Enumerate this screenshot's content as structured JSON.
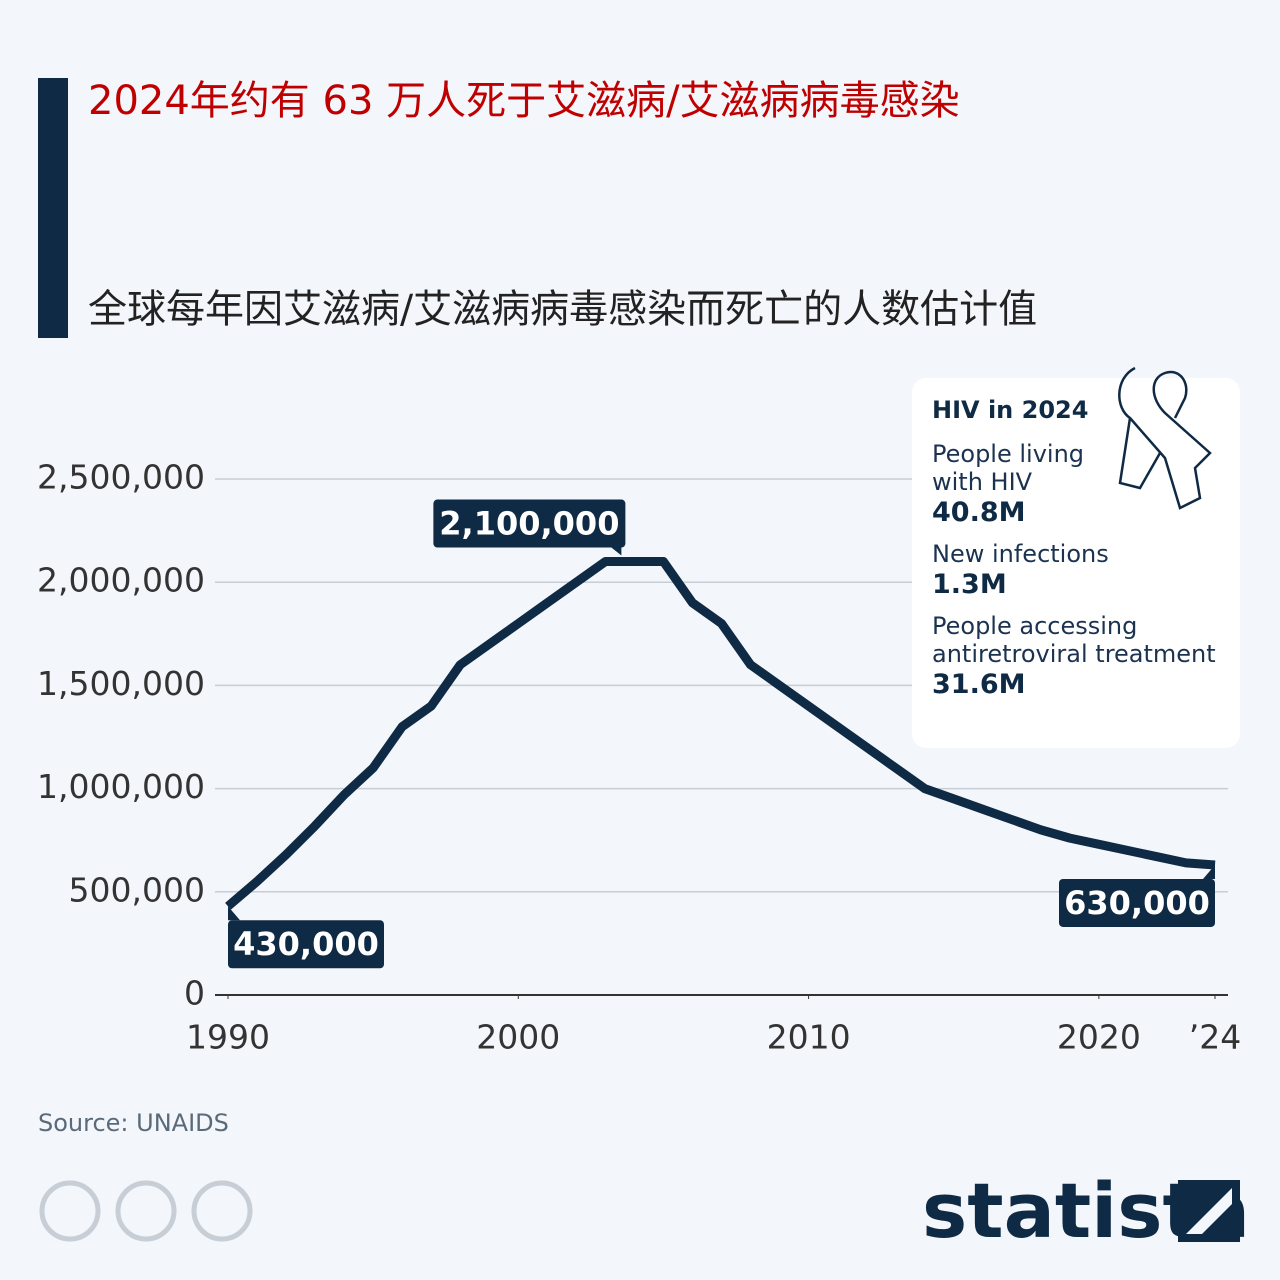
{
  "chart_data": {
    "type": "line",
    "title": "2024年约有 63 万人死于艾滋病/艾滋病病毒感染",
    "subtitle": "全球每年因艾滋病/艾滋病病毒感染而死亡的人数估计值",
    "x": [
      1990,
      1991,
      1992,
      1993,
      1994,
      1995,
      1996,
      1997,
      1998,
      1999,
      2000,
      2001,
      2002,
      2003,
      2004,
      2005,
      2006,
      2007,
      2008,
      2009,
      2010,
      2011,
      2012,
      2013,
      2014,
      2015,
      2016,
      2017,
      2018,
      2019,
      2020,
      2021,
      2022,
      2023,
      2024
    ],
    "series": [
      {
        "color": "#0f2a44",
        "values": [
          430000,
          550000,
          680000,
          820000,
          970000,
          1100000,
          1300000,
          1400000,
          1600000,
          1700000,
          1800000,
          1900000,
          2000000,
          2100000,
          2100000,
          2100000,
          1900000,
          1800000,
          1600000,
          1500000,
          1400000,
          1300000,
          1200000,
          1100000,
          1000000,
          950000,
          900000,
          850000,
          800000,
          760000,
          730000,
          700000,
          670000,
          640000,
          630000
        ],
        "value_labels": [
          "430,000",
          null,
          null,
          null,
          null,
          null,
          null,
          null,
          null,
          null,
          null,
          null,
          null,
          "2,100,000",
          null,
          null,
          null,
          null,
          null,
          null,
          null,
          null,
          null,
          null,
          null,
          null,
          null,
          null,
          null,
          null,
          null,
          null,
          null,
          null,
          "630,000"
        ]
      }
    ],
    "xlim": [
      1990,
      2024
    ],
    "xticks": [
      1990,
      2000,
      2010,
      2020,
      {
        "value": 2024,
        "label": "’24"
      }
    ],
    "ylim": [
      0,
      2500000
    ],
    "yticks": [
      0,
      {
        "value": 500000,
        "label": "500,000"
      },
      {
        "value": 1000000,
        "label": "1,000,000"
      },
      {
        "value": 1500000,
        "label": "1,500,000"
      },
      {
        "value": 2000000,
        "label": "2,000,000"
      },
      {
        "value": 2500000,
        "label": "2,500,000"
      }
    ],
    "grid": true,
    "source": "Source: UNAIDS",
    "brand": "statista",
    "info_box": {
      "title": "HIV in 2024",
      "items": [
        {
          "label": [
            "People living",
            "with HIV"
          ],
          "value": "40.8M"
        },
        {
          "label": [
            "New infections"
          ],
          "value": "1.3M"
        },
        {
          "label": [
            "People accessing",
            "antiretroviral treatment"
          ],
          "value": "31.6M"
        }
      ]
    }
  }
}
